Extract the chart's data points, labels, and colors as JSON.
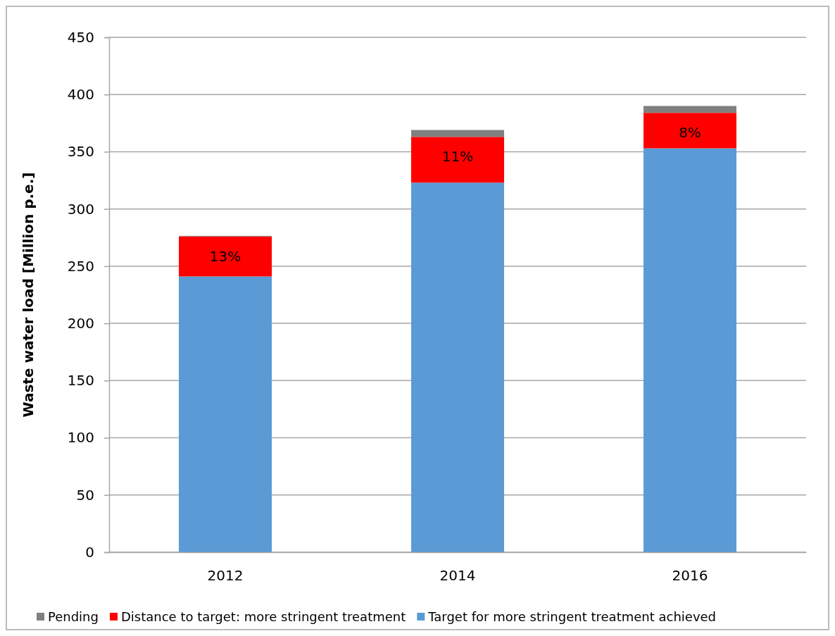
{
  "chart_data": {
    "type": "bar",
    "ylabel": "Waste water load [Million p.e.]",
    "categories": [
      "2012",
      "2014",
      "2016"
    ],
    "series": [
      {
        "name": "Target for more stringent treatment achieved",
        "color": "#5b9bd5",
        "values": [
          241,
          323,
          353
        ]
      },
      {
        "name": "Distance to target: more stringent treatment",
        "color": "#ff0000",
        "values": [
          35,
          40,
          31
        ]
      },
      {
        "name": "Pending",
        "color": "#808080",
        "values": [
          0.5,
          6,
          6
        ]
      }
    ],
    "annotations": [
      {
        "text": "13%",
        "x": "2012",
        "y": 276
      },
      {
        "text": "11%",
        "x": "2014",
        "y": 363
      },
      {
        "text": "8%",
        "x": "2016",
        "y": 384
      }
    ],
    "stacked": true,
    "ylim": [
      0,
      450
    ],
    "yticks": [
      0,
      50,
      100,
      150,
      200,
      250,
      300,
      350,
      400,
      450
    ],
    "grid": "y",
    "legend": "bottom"
  }
}
